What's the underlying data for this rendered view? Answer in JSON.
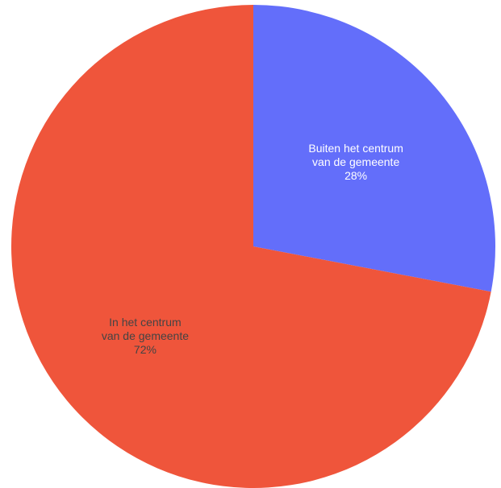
{
  "chart_data": {
    "type": "pie",
    "slices": [
      {
        "label_lines": [
          "Buiten het centrum",
          "van de gemeente"
        ],
        "percent_text": "28%",
        "value": 28,
        "color": "#636efa",
        "label_color": "#ffffff"
      },
      {
        "label_lines": [
          "In het centrum",
          "van de gemeente"
        ],
        "percent_text": "72%",
        "value": 72,
        "color": "#ef553b",
        "label_color": "#444444"
      }
    ]
  }
}
